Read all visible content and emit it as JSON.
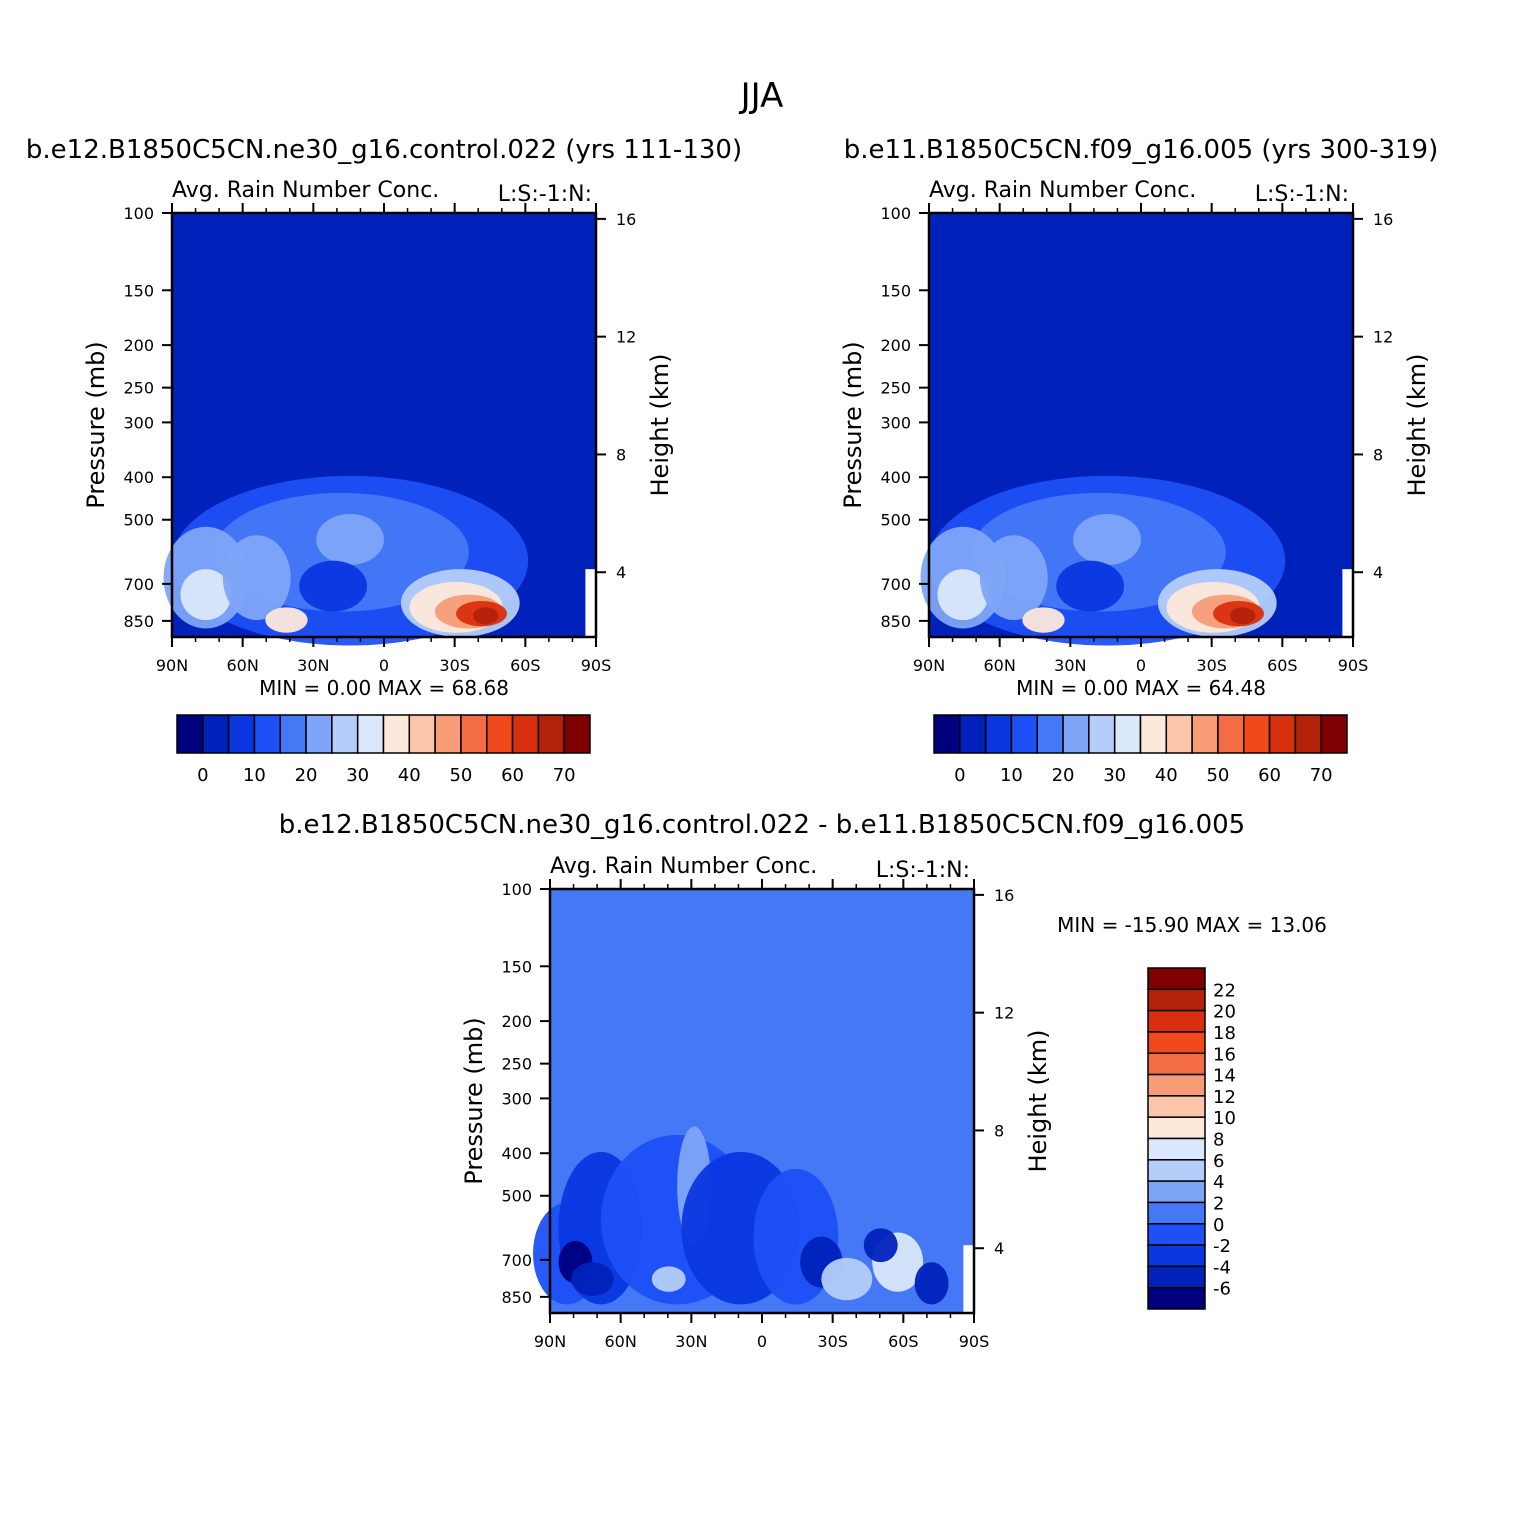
{
  "title": "JJA",
  "chart_data": [
    {
      "type": "heatmap",
      "title": "b.e12.B1850C5CN.ne30_g16.control.022 (yrs 111-130)",
      "subtitle": "Avg. Rain Number Conc.",
      "annotation": "L:S:-1:N:",
      "xlabel": "",
      "ylabel": "Pressure (mb)",
      "ylabel_right": "Height (km)",
      "x_ticks": [
        "90N",
        "60N",
        "30N",
        "0",
        "30S",
        "60S",
        "90S"
      ],
      "y_ticks": [
        "100",
        "150",
        "200",
        "250",
        "300",
        "400",
        "500",
        "700",
        "850"
      ],
      "y_right_ticks": [
        "16",
        "12",
        "8",
        "4"
      ],
      "stats": "MIN =    0.00   MAX =   68.68",
      "colorbar_labels": [
        "0",
        "10",
        "20",
        "30",
        "40",
        "50",
        "60",
        "70"
      ],
      "max_value": 68.68
    },
    {
      "type": "heatmap",
      "title": "b.e11.B1850C5CN.f09_g16.005 (yrs 300-319)",
      "subtitle": "Avg. Rain Number Conc.",
      "annotation": "L:S:-1:N:",
      "xlabel": "",
      "ylabel": "Pressure (mb)",
      "ylabel_right": "Height (km)",
      "x_ticks": [
        "90N",
        "60N",
        "30N",
        "0",
        "30S",
        "60S",
        "90S"
      ],
      "y_ticks": [
        "100",
        "150",
        "200",
        "250",
        "300",
        "400",
        "500",
        "700",
        "850"
      ],
      "y_right_ticks": [
        "16",
        "12",
        "8",
        "4"
      ],
      "stats": "MIN =    0.00   MAX =   64.48",
      "colorbar_labels": [
        "0",
        "10",
        "20",
        "30",
        "40",
        "50",
        "60",
        "70"
      ],
      "max_value": 64.48
    },
    {
      "type": "heatmap",
      "title": "b.e12.B1850C5CN.ne30_g16.control.022 - b.e11.B1850C5CN.f09_g16.005",
      "subtitle": "Avg. Rain Number Conc.",
      "annotation": "L:S:-1:N:",
      "xlabel": "",
      "ylabel": "Pressure (mb)",
      "ylabel_right": "Height (km)",
      "x_ticks": [
        "90N",
        "60N",
        "30N",
        "0",
        "30S",
        "60S",
        "90S"
      ],
      "y_ticks": [
        "100",
        "150",
        "200",
        "250",
        "300",
        "400",
        "500",
        "700",
        "850"
      ],
      "y_right_ticks": [
        "16",
        "12",
        "8",
        "4"
      ],
      "stats": "MIN = -15.90   MAX =   13.06",
      "colorbar_labels": [
        "22",
        "20",
        "18",
        "16",
        "14",
        "12",
        "10",
        "8",
        "6",
        "4",
        "2",
        "0",
        "-2",
        "-4",
        "-6"
      ],
      "min_value": -15.9,
      "max_value": 13.06
    }
  ],
  "palette": [
    "#00007f",
    "#0022bb",
    "#0a37e0",
    "#1d50f5",
    "#4478f5",
    "#7ea5f7",
    "#b4cdf9",
    "#dbe8fb",
    "#fde8da",
    "#fcc4ab",
    "#f79c77",
    "#f26c45",
    "#f04a1c",
    "#d8300f",
    "#b3210a",
    "#7f0000"
  ]
}
